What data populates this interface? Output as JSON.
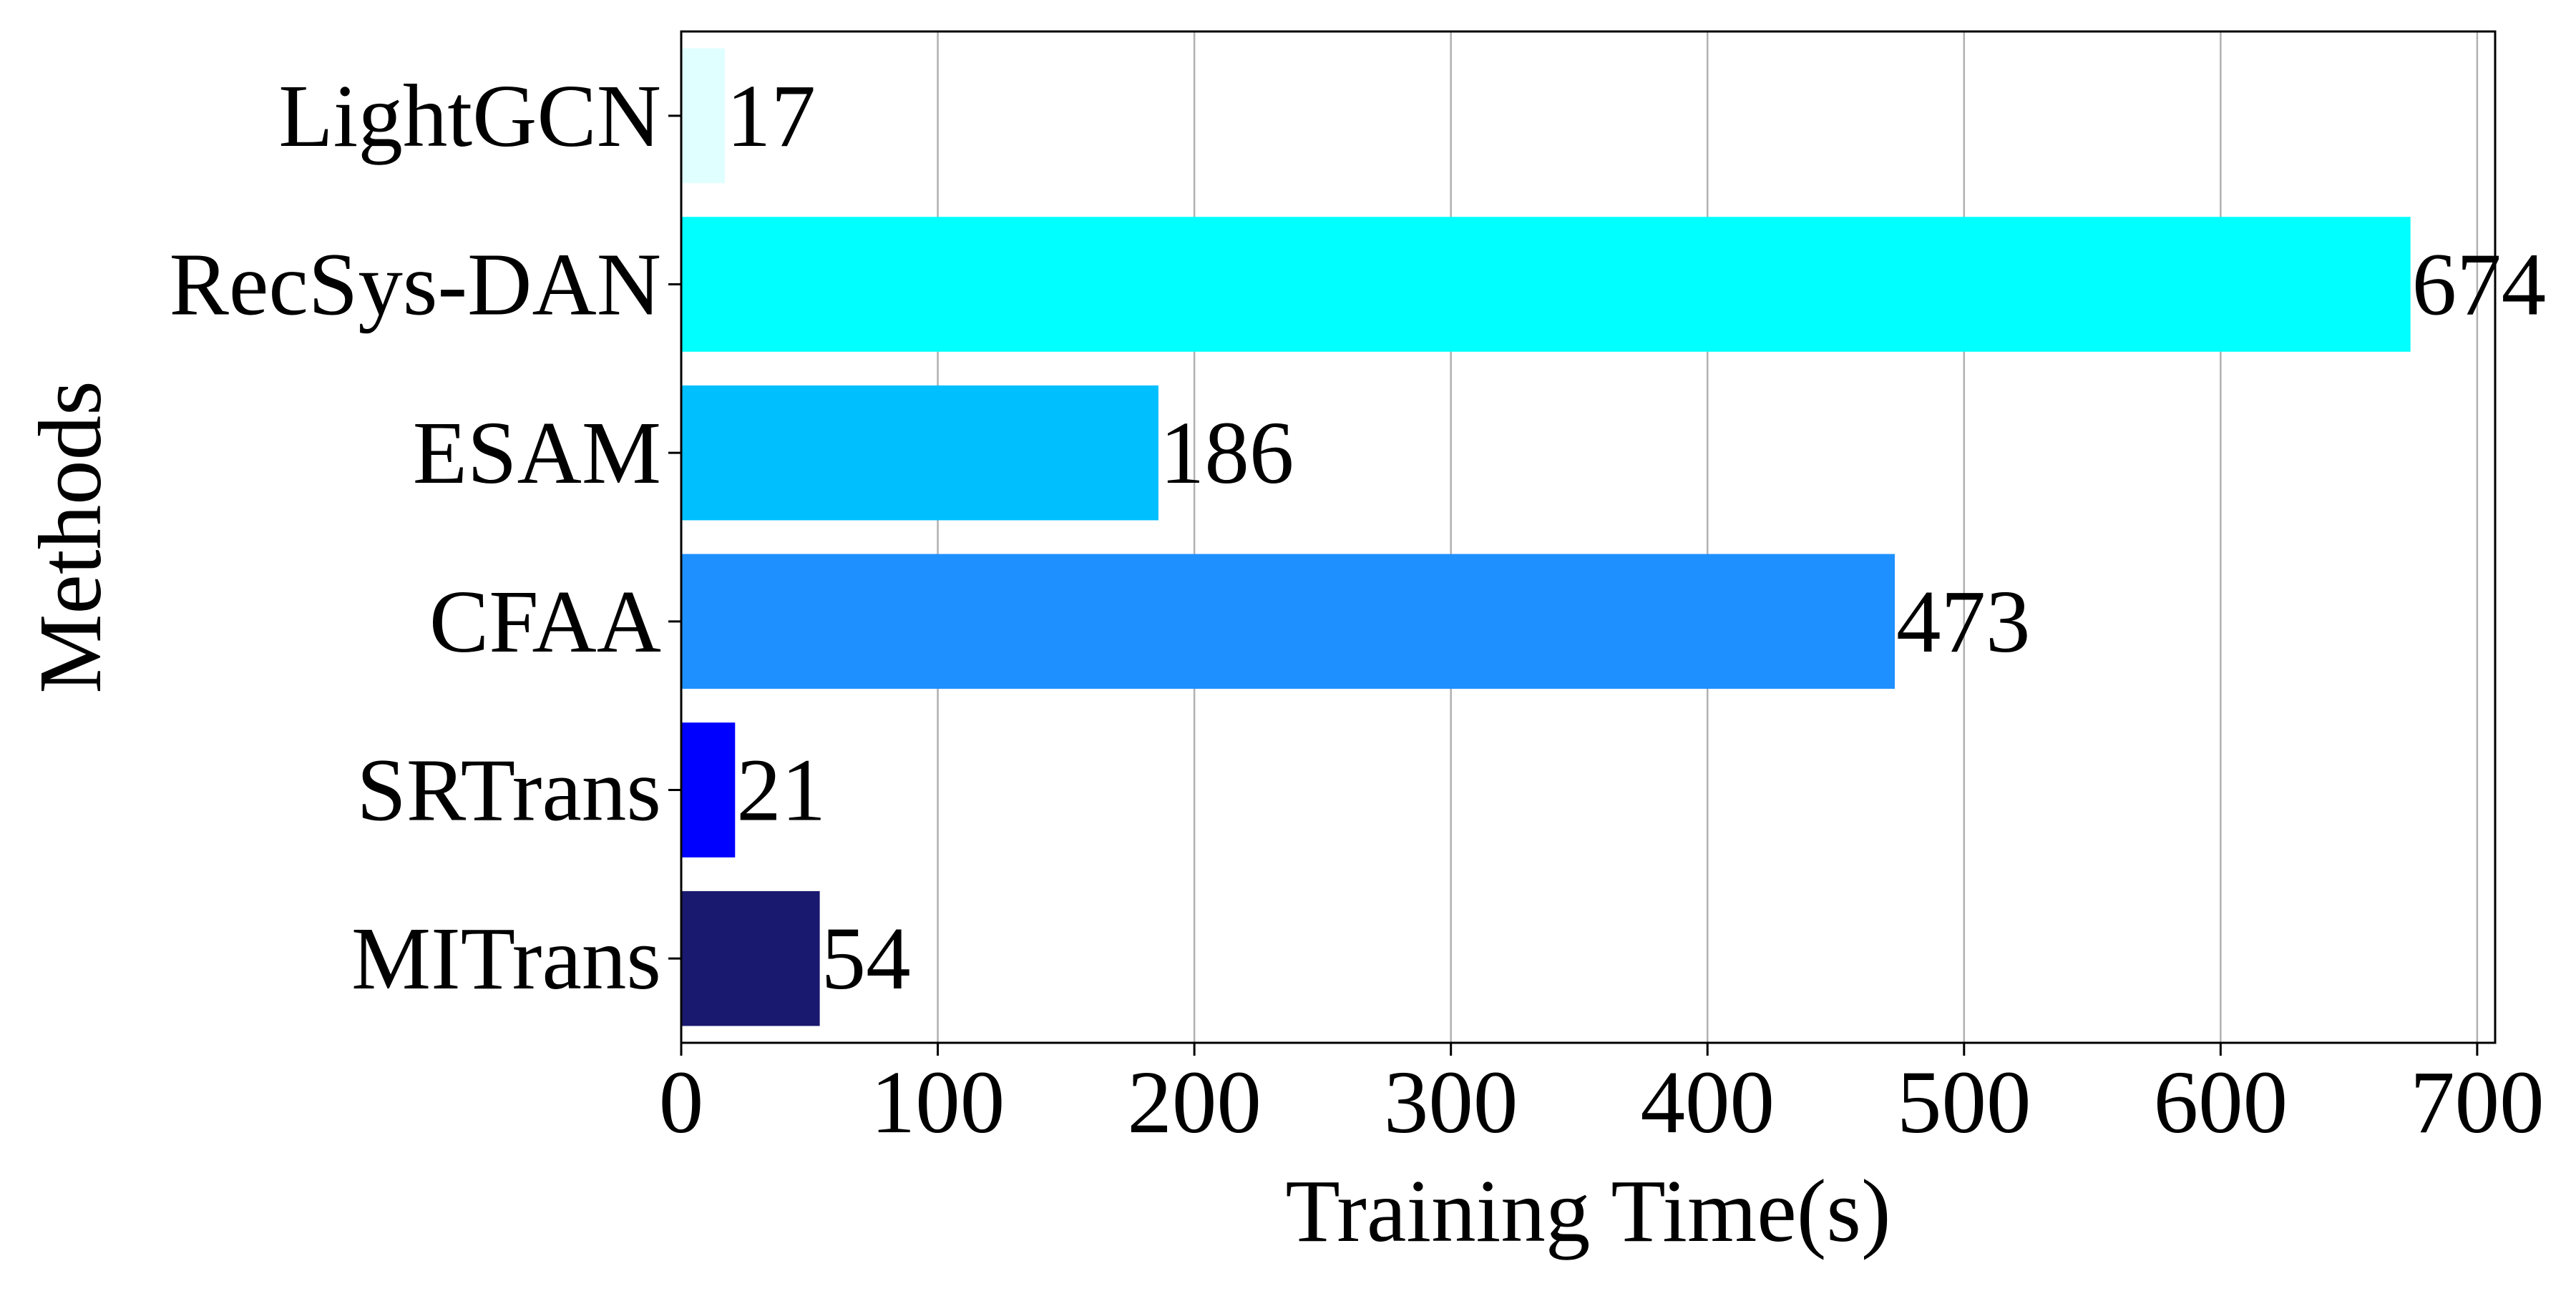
{
  "chart_data": {
    "type": "bar",
    "orientation": "horizontal",
    "categories": [
      "LightGCN",
      "RecSys-DAN",
      "ESAM",
      "CFAA",
      "SRTrans",
      "MITrans"
    ],
    "values": [
      17,
      674,
      186,
      473,
      21,
      54
    ],
    "data_labels": [
      "17",
      "674",
      "186",
      "473",
      "21",
      "54"
    ],
    "colors": [
      "#E0FFFF",
      "#00FFFF",
      "#00BFFF",
      "#1E90FF",
      "#0000FF",
      "#191970"
    ],
    "xlabel": "Training Time(s)",
    "ylabel": "Methods",
    "xlim": [
      0,
      707
    ],
    "xticks": [
      0,
      100,
      200,
      300,
      400,
      500,
      600,
      700
    ],
    "xtick_labels": [
      "0",
      "100",
      "200",
      "300",
      "400",
      "500",
      "600",
      "700"
    ],
    "grid": "vertical lines at x ticks",
    "legend": "none"
  }
}
